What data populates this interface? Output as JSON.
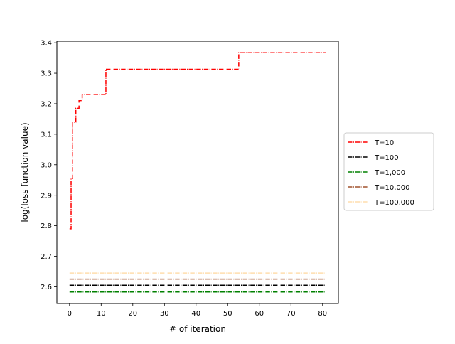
{
  "chart_data": {
    "type": "line",
    "xlabel": "# of iteration",
    "ylabel": "log(loss function value)",
    "xlim": [
      -4,
      85
    ],
    "ylim": [
      2.545,
      3.405
    ],
    "xticks": [
      0,
      10,
      20,
      30,
      40,
      50,
      60,
      70,
      80
    ],
    "yticks": [
      2.6,
      2.7,
      2.8,
      2.9,
      3.0,
      3.1,
      3.2,
      3.3,
      3.4
    ],
    "ytick_labels": [
      "2.6",
      "2.7",
      "2.8",
      "2.9",
      "3.0",
      "3.1",
      "3.2",
      "3.3",
      "3.4"
    ],
    "grid": false,
    "legend_position": "center-right-outside",
    "line_style": "dash-dot",
    "series": [
      {
        "name": "T=10",
        "color": "#ff0000",
        "step": true,
        "x": [
          0,
          0.5,
          1,
          2,
          3,
          4,
          11.5,
          53.5,
          81
        ],
        "values": [
          2.79,
          2.955,
          3.14,
          3.185,
          3.21,
          3.23,
          3.313,
          3.367,
          3.367
        ]
      },
      {
        "name": "T=100",
        "color": "#000000",
        "step": false,
        "x": [
          0,
          81
        ],
        "values": [
          2.605,
          2.605
        ]
      },
      {
        "name": "T=1,000",
        "color": "#008000",
        "step": false,
        "x": [
          0,
          81
        ],
        "values": [
          2.583,
          2.583
        ]
      },
      {
        "name": "T=10,000",
        "color": "#a0522d",
        "step": false,
        "x": [
          0,
          81
        ],
        "values": [
          2.625,
          2.625
        ]
      },
      {
        "name": "T=100,000",
        "color": "#ffdead",
        "step": false,
        "x": [
          0,
          81
        ],
        "values": [
          2.645,
          2.645
        ]
      }
    ]
  }
}
